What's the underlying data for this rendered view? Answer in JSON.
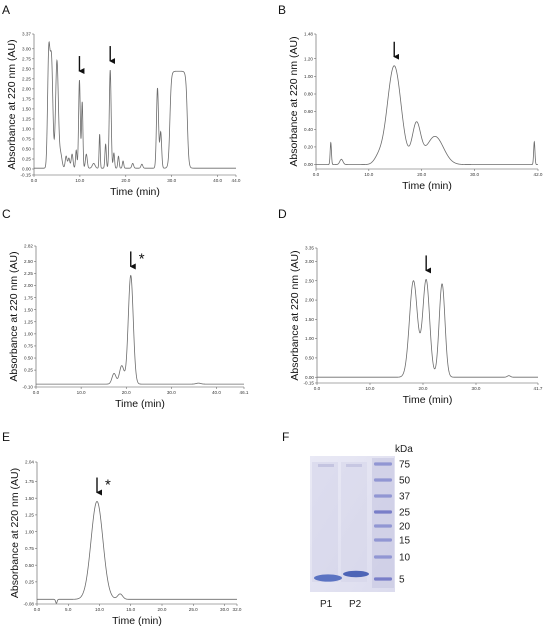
{
  "panel_letters": [
    "A",
    "B",
    "C",
    "D",
    "E",
    "F"
  ],
  "chart_data": [
    {
      "panel": "A",
      "type": "line",
      "xlabel": "Time (min)",
      "ylabel": "Absorbance at 220 nm (AU)",
      "xlim": [
        0,
        44
      ],
      "ylim": [
        -0.15,
        3.37
      ],
      "xticks": [
        "0.0",
        "10.0",
        "20.0",
        "30.0",
        "40.0",
        "44.0"
      ],
      "xtick_values": [
        0,
        10,
        20,
        30,
        40,
        44
      ],
      "yticks": [
        "-0.15",
        "0.00",
        "0.25",
        "0.50",
        "0.75",
        "1.00",
        "1.25",
        "1.50",
        "1.75",
        "2.00",
        "2.25",
        "2.50",
        "2.75",
        "3.00",
        "3.37"
      ],
      "ytick_values": [
        -0.15,
        0,
        0.25,
        0.5,
        0.75,
        1,
        1.25,
        1.5,
        1.75,
        2,
        2.25,
        2.5,
        2.75,
        3,
        3.37
      ],
      "baseline": 0.02,
      "peaks": [
        {
          "rt": 3.2,
          "h": 2.68,
          "w": 0.25
        },
        {
          "rt": 3.8,
          "h": 2.72,
          "w": 0.3
        },
        {
          "rt": 5.0,
          "h": 2.68,
          "w": 0.3
        },
        {
          "rt": 5.8,
          "h": 0.35,
          "w": 0.3
        },
        {
          "rt": 7.0,
          "h": 0.3,
          "w": 0.2
        },
        {
          "rt": 7.6,
          "h": 0.25,
          "w": 0.2
        },
        {
          "rt": 8.3,
          "h": 0.35,
          "w": 0.2
        },
        {
          "rt": 9.2,
          "h": 0.45,
          "w": 0.15
        },
        {
          "rt": 9.9,
          "h": 2.2,
          "w": 0.18
        },
        {
          "rt": 10.5,
          "h": 1.65,
          "w": 0.15
        },
        {
          "rt": 11.4,
          "h": 0.35,
          "w": 0.2
        },
        {
          "rt": 13.0,
          "h": 0.12,
          "w": 0.3
        },
        {
          "rt": 14.3,
          "h": 0.85,
          "w": 0.12
        },
        {
          "rt": 15.6,
          "h": 0.6,
          "w": 0.15
        },
        {
          "rt": 16.6,
          "h": 2.45,
          "w": 0.2
        },
        {
          "rt": 17.4,
          "h": 0.38,
          "w": 0.15
        },
        {
          "rt": 18.4,
          "h": 0.3,
          "w": 0.15
        },
        {
          "rt": 19.4,
          "h": 0.18,
          "w": 0.15
        },
        {
          "rt": 21.5,
          "h": 0.12,
          "w": 0.2
        },
        {
          "rt": 23.5,
          "h": 0.1,
          "w": 0.2
        },
        {
          "rt": 26.9,
          "h": 2.0,
          "w": 0.22
        },
        {
          "rt": 27.6,
          "h": 0.9,
          "w": 0.2
        }
      ],
      "plateaus": [
        {
          "start": 29.6,
          "end": 33.4,
          "h": 2.42,
          "edge": 0.45
        }
      ],
      "arrows_at": [
        9.9,
        16.6
      ],
      "star": false
    },
    {
      "panel": "B",
      "type": "line",
      "xlabel": "Time (min)",
      "ylabel": "Absorbance at 220 nm (AU)",
      "xlim": [
        0,
        42
      ],
      "ylim": [
        -0.05,
        1.48
      ],
      "xticks": [
        "0.0",
        "10.0",
        "20.0",
        "30.0",
        "42.0"
      ],
      "xtick_values": [
        0,
        10,
        20,
        30,
        42
      ],
      "yticks": [
        "0.00",
        "0.20",
        "0.40",
        "0.60",
        "0.80",
        "1.00",
        "1.20",
        "1.48"
      ],
      "ytick_values": [
        0,
        0.2,
        0.4,
        0.6,
        0.8,
        1.0,
        1.2,
        1.48
      ],
      "baseline": 0.0,
      "peaks": [
        {
          "rt": 2.8,
          "h": 0.25,
          "w": 0.12
        },
        {
          "rt": 4.8,
          "h": 0.06,
          "w": 0.3
        },
        {
          "rt": 11.8,
          "h": 0.07,
          "w": 0.8
        },
        {
          "rt": 14.8,
          "h": 1.12,
          "w": 1.3
        },
        {
          "rt": 19.0,
          "h": 0.45,
          "w": 0.8
        },
        {
          "rt": 22.5,
          "h": 0.32,
          "w": 1.6
        },
        {
          "rt": 41.3,
          "h": 0.26,
          "w": 0.12
        }
      ],
      "plateaus": [],
      "arrows_at": [
        14.8
      ],
      "star": false
    },
    {
      "panel": "C",
      "type": "line",
      "xlabel": "Time (min)",
      "ylabel": "Absorbance at 220 nm (AU)",
      "xlim": [
        0,
        46.1
      ],
      "ylim": [
        -0.1,
        2.82
      ],
      "xticks": [
        "0.0",
        "10.0",
        "20.0",
        "30.0",
        "40.0",
        "46.1"
      ],
      "xtick_values": [
        0,
        10,
        20,
        30,
        40,
        46.1
      ],
      "yticks": [
        "-0.10",
        "0.25",
        "0.50",
        "0.75",
        "1.00",
        "1.25",
        "1.50",
        "1.75",
        "2.00",
        "2.25",
        "2.50",
        "2.82"
      ],
      "ytick_values": [
        -0.1,
        0.25,
        0.5,
        0.75,
        1.0,
        1.25,
        1.5,
        1.75,
        2.0,
        2.25,
        2.5,
        2.82
      ],
      "baseline": -0.04,
      "peaks": [
        {
          "rt": 17.3,
          "h": 0.22,
          "w": 0.45
        },
        {
          "rt": 19.0,
          "h": 0.38,
          "w": 0.5
        },
        {
          "rt": 21.0,
          "h": 2.25,
          "w": 0.55
        },
        {
          "rt": 36.0,
          "h": 0.02,
          "w": 0.5
        }
      ],
      "plateaus": [],
      "arrows_at": [
        21.0
      ],
      "star": true
    },
    {
      "panel": "D",
      "type": "line",
      "xlabel": "Time (min)",
      "ylabel": "Absorbance at 220 nm (AU)",
      "xlim": [
        0,
        41.7
      ],
      "ylim": [
        -0.15,
        3.35
      ],
      "xticks": [
        "0.0",
        "10.0",
        "20.0",
        "30.0",
        "41.7"
      ],
      "xtick_values": [
        0,
        10,
        20,
        30,
        41.7
      ],
      "yticks": [
        "-0.15",
        "0.00",
        "0.50",
        "1.00",
        "1.50",
        "2.00",
        "2.50",
        "3.00",
        "3.35"
      ],
      "ytick_values": [
        -0.15,
        0,
        0.5,
        1.0,
        1.5,
        2.0,
        2.5,
        3.0,
        3.35
      ],
      "baseline": 0.0,
      "peaks": [
        {
          "rt": 18.2,
          "h": 2.5,
          "w": 0.75
        },
        {
          "rt": 20.6,
          "h": 2.52,
          "w": 0.65
        },
        {
          "rt": 23.6,
          "h": 2.42,
          "w": 0.55
        },
        {
          "rt": 36.2,
          "h": 0.04,
          "w": 0.3
        }
      ],
      "plateaus": [],
      "arrows_at": [
        20.6
      ],
      "star": false
    },
    {
      "panel": "E",
      "type": "line",
      "xlabel": "Time (min)",
      "ylabel": "Absorbance at 220 nm (AU)",
      "xlim": [
        0,
        32
      ],
      "ylim": [
        -0.08,
        2.04
      ],
      "xticks": [
        "0.0",
        "5.0",
        "10.0",
        "15.0",
        "20.0",
        "25.0",
        "30.0",
        "32.0"
      ],
      "xtick_values": [
        0,
        5,
        10,
        15,
        20,
        25,
        30,
        32
      ],
      "yticks": [
        "-0.08",
        "0.25",
        "0.50",
        "0.75",
        "1.00",
        "1.25",
        "1.50",
        "1.75",
        "2.04"
      ],
      "ytick_values": [
        -0.08,
        0.25,
        0.5,
        0.75,
        1.0,
        1.25,
        1.5,
        1.75,
        2.04
      ],
      "baseline": -0.01,
      "peaks": [
        {
          "rt": 3.1,
          "h": -0.06,
          "w": 0.12
        },
        {
          "rt": 9.6,
          "h": 1.46,
          "w": 0.95
        },
        {
          "rt": 13.3,
          "h": 0.08,
          "w": 0.4
        }
      ],
      "plateaus": [],
      "arrows_at": [
        9.6
      ],
      "star": true
    }
  ],
  "gel": {
    "marker_label": "kDa",
    "markers": [
      {
        "kda": "75"
      },
      {
        "kda": "50"
      },
      {
        "kda": "37"
      },
      {
        "kda": "25"
      },
      {
        "kda": "20"
      },
      {
        "kda": "15"
      },
      {
        "kda": "10"
      },
      {
        "kda": "5"
      }
    ],
    "lanes": [
      {
        "label": "P1"
      },
      {
        "label": "P2"
      }
    ]
  }
}
